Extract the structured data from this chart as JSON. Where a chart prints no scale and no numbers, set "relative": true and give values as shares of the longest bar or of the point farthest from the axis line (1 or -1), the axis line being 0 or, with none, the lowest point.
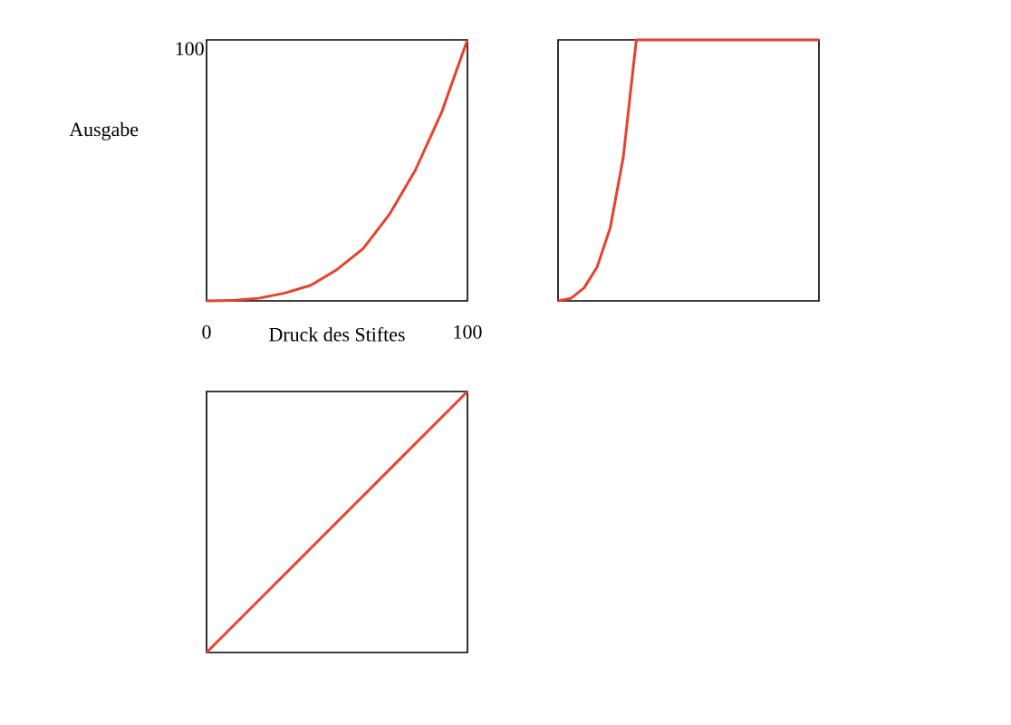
{
  "chart_data": [
    {
      "type": "line",
      "relative": true,
      "xlabel": "Druck des Stiftes",
      "ylabel": "Ausgabe",
      "annotations": [
        "100"
      ],
      "x": [
        0,
        10,
        20,
        30,
        40,
        50,
        60,
        70,
        80,
        90,
        100
      ],
      "values": [
        0,
        0.002,
        0.01,
        0.03,
        0.06,
        0.12,
        0.2,
        0.33,
        0.5,
        0.72,
        1
      ],
      "color": "#e8412c",
      "xlim": [
        0,
        100
      ],
      "xticks": [
        0,
        100
      ],
      "tick_labels": "x"
    },
    {
      "type": "line",
      "relative": true,
      "categories": [
        null,
        null,
        null,
        null,
        null,
        null,
        null,
        null,
        null,
        null,
        null,
        null,
        null,
        null,
        null,
        null,
        null,
        null,
        null,
        null,
        null
      ],
      "values": [
        0,
        0.01,
        0.05,
        0.13,
        0.28,
        0.55,
        1,
        1,
        1,
        1,
        1,
        1,
        1,
        1,
        1,
        1,
        1,
        1,
        1,
        1,
        1
      ],
      "color": "#e8412c",
      "tick_labels": false
    },
    {
      "type": "line",
      "relative": true,
      "categories": [
        null,
        null
      ],
      "values": [
        0,
        1
      ],
      "color": "#e8412c",
      "tick_labels": false
    }
  ]
}
